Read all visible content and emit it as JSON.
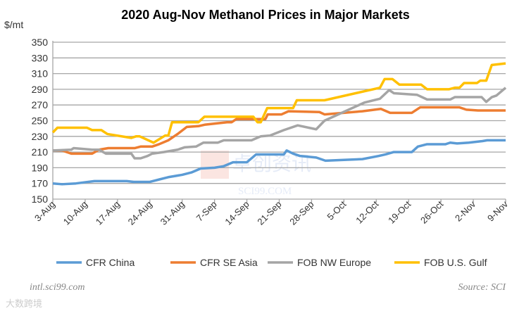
{
  "chart_data": {
    "type": "line",
    "title": "2020 Aug-Nov Methanol Prices in Major Markets",
    "ylabel": "$/mt",
    "xlabel": "",
    "ylim": [
      150,
      350
    ],
    "yticks": [
      150,
      170,
      190,
      210,
      230,
      250,
      270,
      290,
      310,
      330,
      350
    ],
    "x_unit": "days since 3-Aug",
    "xlim": [
      0,
      98
    ],
    "xtick_labels": [
      "3-Aug",
      "10-Aug",
      "17-Aug",
      "24-Aug",
      "31-Aug",
      "7-Sep",
      "14-Sep",
      "21-Sep",
      "28-Sep",
      "5-Oct",
      "12-Oct",
      "19-Oct",
      "26-Oct",
      "2-Nov",
      "9-Nov"
    ],
    "grid": true,
    "legend_position": "bottom",
    "series": [
      {
        "name": "CFR China",
        "color": "#5B9BD5",
        "points": [
          [
            0,
            170
          ],
          [
            2,
            169
          ],
          [
            5,
            170
          ],
          [
            9,
            173
          ],
          [
            16,
            173
          ],
          [
            17.5,
            172
          ],
          [
            21,
            172
          ],
          [
            23,
            175
          ],
          [
            25,
            178
          ],
          [
            28,
            181
          ],
          [
            30,
            184
          ],
          [
            32,
            189
          ],
          [
            35,
            190
          ],
          [
            37,
            192
          ],
          [
            39,
            197
          ],
          [
            42,
            197
          ],
          [
            44,
            207
          ],
          [
            50,
            207
          ],
          [
            50.6,
            212
          ],
          [
            52,
            208
          ],
          [
            53.5,
            205
          ],
          [
            57,
            203
          ],
          [
            59,
            199
          ],
          [
            67,
            201
          ],
          [
            70.5,
            205
          ],
          [
            72,
            207
          ],
          [
            73.8,
            210
          ],
          [
            77.7,
            210
          ],
          [
            79,
            217
          ],
          [
            81,
            220
          ],
          [
            85,
            220
          ],
          [
            86,
            222
          ],
          [
            87.5,
            221
          ],
          [
            90,
            222
          ],
          [
            93,
            224
          ],
          [
            94,
            225
          ],
          [
            98,
            225
          ]
        ]
      },
      {
        "name": "CFR SE Asia",
        "color": "#ED7D31",
        "points": [
          [
            0,
            212
          ],
          [
            2,
            212
          ],
          [
            4,
            208
          ],
          [
            8.5,
            208
          ],
          [
            10,
            213
          ],
          [
            12,
            215
          ],
          [
            17.7,
            215
          ],
          [
            19,
            217
          ],
          [
            21.5,
            217
          ],
          [
            23,
            220
          ],
          [
            25,
            225
          ],
          [
            27,
            233
          ],
          [
            29,
            242
          ],
          [
            31.5,
            243
          ],
          [
            33,
            245
          ],
          [
            37.7,
            248
          ],
          [
            38.7,
            248
          ],
          [
            39.7,
            252
          ],
          [
            46,
            252
          ],
          [
            46.5,
            258
          ],
          [
            49.5,
            258
          ],
          [
            51,
            262
          ],
          [
            57.7,
            261
          ],
          [
            58.8,
            258
          ],
          [
            67,
            262
          ],
          [
            71,
            265
          ],
          [
            73,
            260
          ],
          [
            77.7,
            260
          ],
          [
            79.5,
            267
          ],
          [
            88,
            267
          ],
          [
            89.5,
            264
          ],
          [
            92,
            263
          ],
          [
            98,
            263
          ]
        ]
      },
      {
        "name": "FOB NW Europe",
        "color": "#A5A5A5",
        "points": [
          [
            0,
            212
          ],
          [
            4,
            213
          ],
          [
            4.5,
            215
          ],
          [
            8.5,
            213
          ],
          [
            10,
            213
          ],
          [
            11.5,
            208
          ],
          [
            17,
            208
          ],
          [
            17.7,
            202
          ],
          [
            19,
            202
          ],
          [
            20.5,
            205
          ],
          [
            21.5,
            208
          ],
          [
            24,
            210
          ],
          [
            27,
            213
          ],
          [
            28.5,
            216
          ],
          [
            31,
            217
          ],
          [
            32.6,
            222
          ],
          [
            35.7,
            222
          ],
          [
            37,
            225
          ],
          [
            43,
            225
          ],
          [
            45,
            230
          ],
          [
            47,
            231
          ],
          [
            50,
            238
          ],
          [
            53,
            244
          ],
          [
            57,
            239
          ],
          [
            58.8,
            250
          ],
          [
            67.4,
            273
          ],
          [
            70.8,
            278
          ],
          [
            72.8,
            289
          ],
          [
            73.8,
            285
          ],
          [
            78.8,
            283
          ],
          [
            81,
            277
          ],
          [
            86,
            277
          ],
          [
            87,
            280
          ],
          [
            92.8,
            280
          ],
          [
            93.8,
            274
          ],
          [
            95,
            280
          ],
          [
            96,
            282
          ],
          [
            98,
            292
          ]
        ]
      },
      {
        "name": "FOB U.S. Gulf",
        "color": "#FFC000",
        "points": [
          [
            0,
            235
          ],
          [
            1,
            241
          ],
          [
            7.4,
            241
          ],
          [
            8.5,
            238
          ],
          [
            10.5,
            238
          ],
          [
            11.8,
            233
          ],
          [
            17,
            228
          ],
          [
            18,
            230
          ],
          [
            18.8,
            230
          ],
          [
            21.8,
            222
          ],
          [
            24.3,
            231
          ],
          [
            25,
            231
          ],
          [
            25.8,
            248
          ],
          [
            31.5,
            248
          ],
          [
            32.8,
            255
          ],
          [
            43.4,
            255
          ],
          [
            44.3,
            248
          ],
          [
            45,
            248
          ],
          [
            46.4,
            266
          ],
          [
            52,
            266
          ],
          [
            52.8,
            276
          ],
          [
            58.8,
            276
          ],
          [
            70.8,
            292
          ],
          [
            71.8,
            303
          ],
          [
            73.5,
            303
          ],
          [
            75,
            296
          ],
          [
            79.7,
            296
          ],
          [
            81,
            290
          ],
          [
            85.7,
            290
          ],
          [
            87,
            292
          ],
          [
            88,
            292
          ],
          [
            89,
            298
          ],
          [
            91.8,
            298
          ],
          [
            92.5,
            301
          ],
          [
            93.8,
            301
          ],
          [
            95,
            321
          ],
          [
            98,
            323
          ]
        ]
      }
    ]
  },
  "footer": {
    "left": "intl.sci99.com",
    "right": "Source: SCI"
  },
  "watermark": {
    "text": "卓创资讯",
    "sub": "SCI99.COM",
    "corner": "大数跨境"
  }
}
